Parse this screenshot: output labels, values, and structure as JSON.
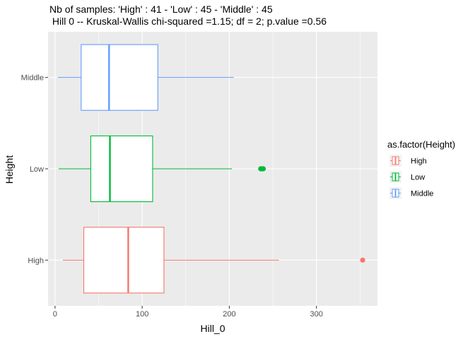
{
  "chart_data": {
    "type": "boxplot",
    "orientation": "horizontal",
    "title_line1": "Nb of samples: 'High' : 41 - 'Low' : 45 - 'Middle' : 45",
    "title_line2": " Hill 0 -- Kruskal-Wallis chi-squared =1.15; df = 2; p.value =0.56",
    "xlabel": "Hill_0",
    "ylabel": "Height",
    "xlim": [
      -8,
      370
    ],
    "x_ticks": [
      0,
      100,
      200,
      300
    ],
    "x_tick_labels": [
      "0",
      "100",
      "200",
      "300"
    ],
    "grid": true,
    "categories": [
      "High",
      "Low",
      "Middle"
    ],
    "series": [
      {
        "name": "High",
        "color": "#F8766D",
        "whisker_low": 9,
        "q1": 33,
        "median": 84,
        "q3": 125,
        "whisker_high": 257,
        "outliers": [
          353
        ]
      },
      {
        "name": "Low",
        "color": "#00BA38",
        "whisker_low": 4,
        "q1": 41,
        "median": 63,
        "q3": 112,
        "whisker_high": 203,
        "outliers": [
          236,
          237,
          238,
          239
        ]
      },
      {
        "name": "Middle",
        "color": "#619CFF",
        "whisker_low": 3,
        "q1": 30,
        "median": 62,
        "q3": 118,
        "whisker_high": 205,
        "outliers": []
      }
    ],
    "legend": {
      "title": "as.factor(Height)",
      "position": "right",
      "items": [
        "High",
        "Low",
        "Middle"
      ]
    }
  }
}
